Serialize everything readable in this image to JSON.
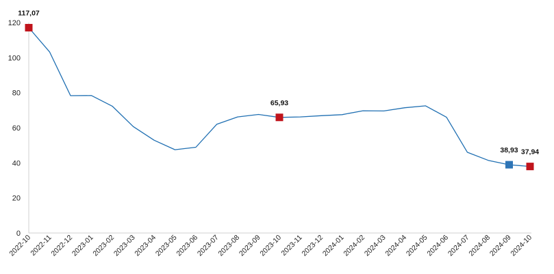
{
  "chart_data": {
    "type": "line",
    "x": [
      "2022-10",
      "2022-11",
      "2022-12",
      "2023-01",
      "2023-02",
      "2023-03",
      "2023-04",
      "2023-05",
      "2023-06",
      "2023-07",
      "2023-08",
      "2023-09",
      "2023-10",
      "2023-11",
      "2023-12",
      "2024-01",
      "2024-02",
      "2024-03",
      "2024-04",
      "2024-05",
      "2024-06",
      "2024-07",
      "2024-08",
      "2024-09",
      "2024-10"
    ],
    "series": [
      {
        "values": [
          117.07,
          103.2,
          78.3,
          78.4,
          72.3,
          60.7,
          52.9,
          47.5,
          48.9,
          62.0,
          66.2,
          67.6,
          65.93,
          66.2,
          66.9,
          67.5,
          69.7,
          69.6,
          71.4,
          72.5,
          66.0,
          46.0,
          41.4,
          38.93,
          37.94
        ],
        "color": "#1f6fb2"
      }
    ],
    "highlights": [
      {
        "index": 0,
        "label": "117,07",
        "color": "#c0141c"
      },
      {
        "index": 12,
        "label": "65,93",
        "color": "#c0141c"
      },
      {
        "index": 23,
        "label": "38,93",
        "color": "#2e75b6"
      },
      {
        "index": 24,
        "label": "37,94",
        "color": "#c0141c"
      }
    ],
    "yticks": [
      "0",
      "20",
      "40",
      "60",
      "80",
      "100",
      "120"
    ],
    "ylim": [
      0,
      120
    ],
    "grid": false,
    "title": "",
    "xlabel": "",
    "ylabel": ""
  }
}
